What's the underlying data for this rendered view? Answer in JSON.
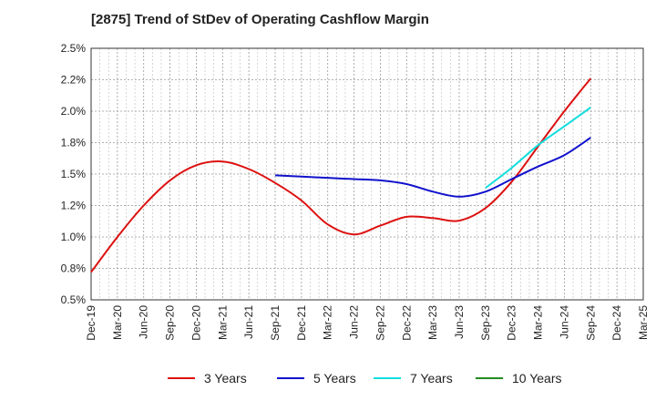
{
  "chart_data": {
    "type": "line",
    "title": "[2875]  Trend of StDev of Operating Cashflow Margin",
    "xlabel": "",
    "ylabel": "",
    "x_ticks": [
      "Dec-19",
      "Mar-20",
      "Jun-20",
      "Sep-20",
      "Dec-20",
      "Mar-21",
      "Jun-21",
      "Sep-21",
      "Dec-21",
      "Mar-22",
      "Jun-22",
      "Sep-22",
      "Dec-22",
      "Mar-23",
      "Jun-23",
      "Sep-23",
      "Dec-23",
      "Mar-24",
      "Jun-24",
      "Sep-24",
      "Dec-24",
      "Mar-25"
    ],
    "y_ticks": [
      "0.5%",
      "0.8%",
      "1.0%",
      "1.2%",
      "1.5%",
      "1.8%",
      "2.0%",
      "2.2%",
      "2.5%"
    ],
    "ylim": [
      0.5,
      2.5
    ],
    "grid": true,
    "legend_position": "bottom",
    "series": [
      {
        "name": "3 Years",
        "color": "#dd1111",
        "x": [
          "Dec-19",
          "Mar-20",
          "Jun-20",
          "Sep-20",
          "Dec-20",
          "Mar-21",
          "Jun-21",
          "Sep-21",
          "Dec-21",
          "Mar-22",
          "Jun-22",
          "Sep-22",
          "Dec-22",
          "Mar-23",
          "Jun-23",
          "Sep-23",
          "Dec-23",
          "Mar-24",
          "Jun-24",
          "Sep-24"
        ],
        "values": [
          0.72,
          1.0,
          1.25,
          1.45,
          1.57,
          1.6,
          1.54,
          1.43,
          1.29,
          1.1,
          1.02,
          1.09,
          1.16,
          1.15,
          1.13,
          1.23,
          1.44,
          1.72,
          2.0,
          2.26
        ]
      },
      {
        "name": "5 Years",
        "color": "#1111cc",
        "x": [
          "Sep-21",
          "Dec-21",
          "Mar-22",
          "Jun-22",
          "Sep-22",
          "Dec-22",
          "Mar-23",
          "Jun-23",
          "Sep-23",
          "Dec-23",
          "Mar-24",
          "Jun-24",
          "Sep-24"
        ],
        "values": [
          1.49,
          1.48,
          1.47,
          1.46,
          1.45,
          1.42,
          1.36,
          1.32,
          1.36,
          1.46,
          1.56,
          1.65,
          1.79
        ]
      },
      {
        "name": "7 Years",
        "color": "#11dddd",
        "x": [
          "Sep-23",
          "Dec-23",
          "Mar-24",
          "Jun-24",
          "Sep-24"
        ],
        "values": [
          1.39,
          1.55,
          1.73,
          1.88,
          2.03
        ]
      },
      {
        "name": "10 Years",
        "color": "#228b22",
        "x": [],
        "values": []
      }
    ]
  }
}
